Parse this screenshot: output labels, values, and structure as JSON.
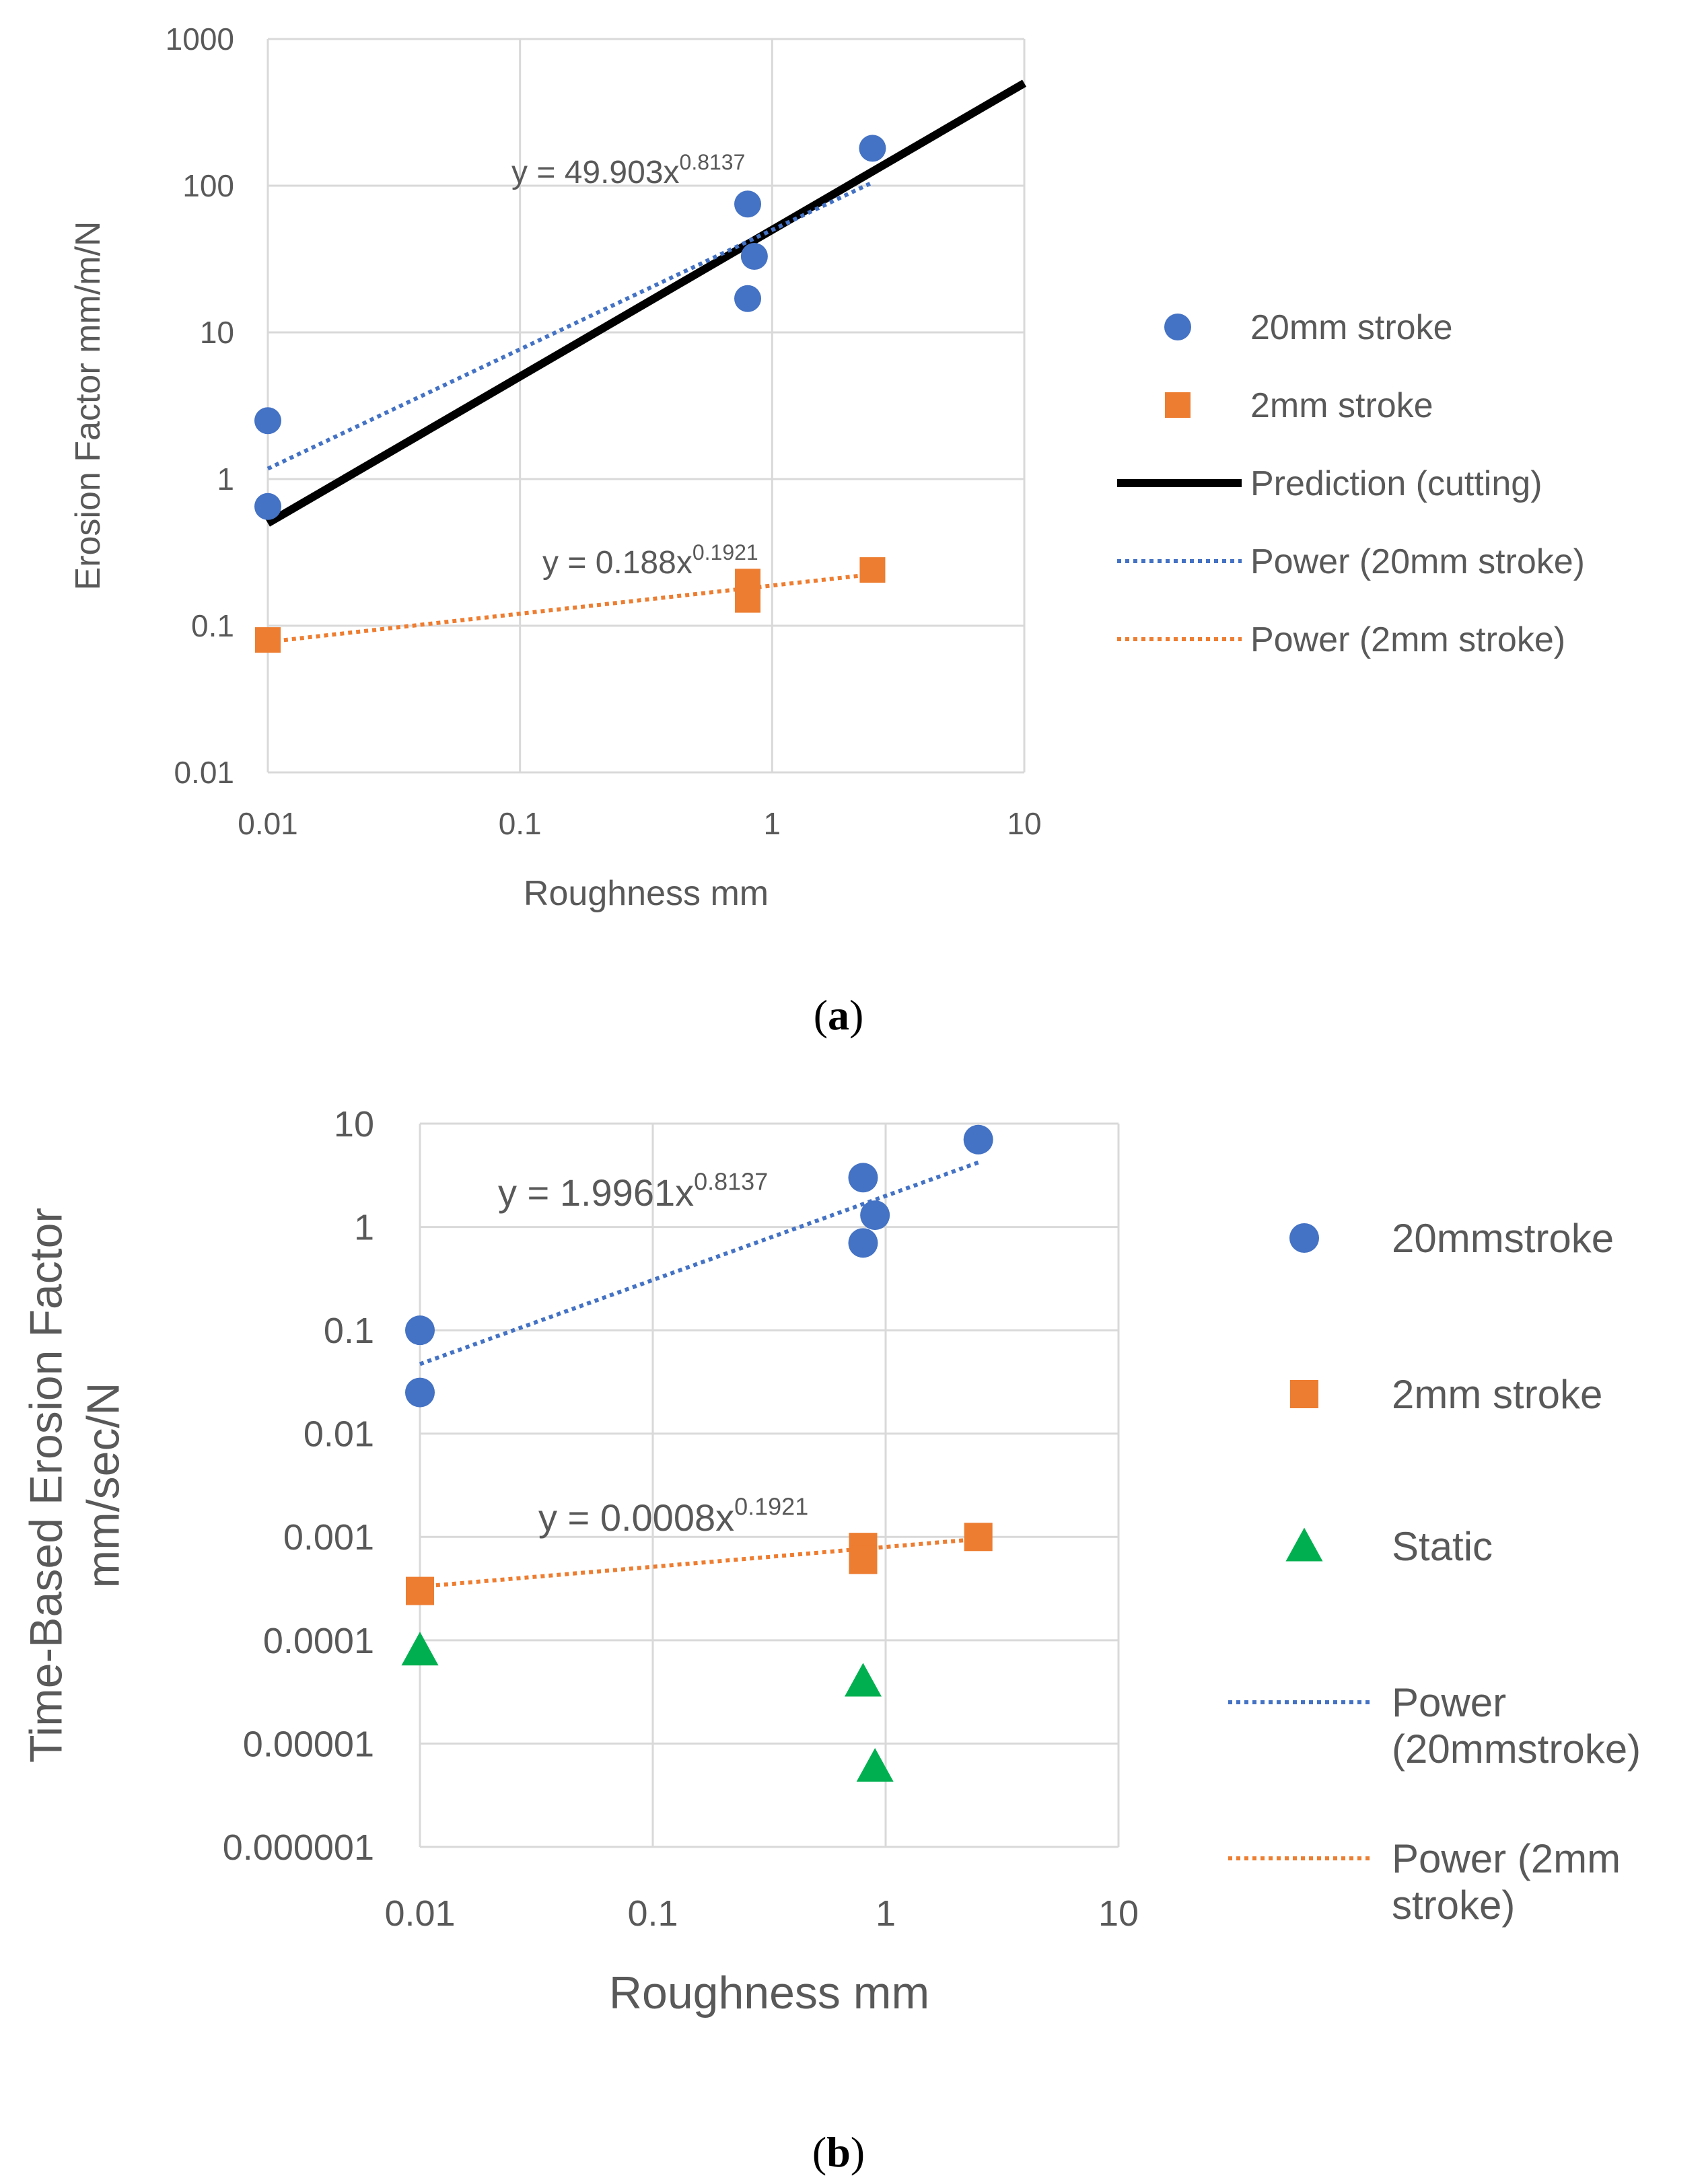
{
  "chart_data": [
    {
      "type": "scatter",
      "panel_label": "a",
      "xlabel": "Roughness mm",
      "ylabel": "Erosion Factor mm/m/N",
      "xscale": "log",
      "yscale": "log",
      "xlim": [
        0.01,
        10
      ],
      "ylim": [
        0.01,
        1000
      ],
      "x_ticks": [
        "0.01",
        "0.1",
        "1",
        "10"
      ],
      "y_ticks": [
        "0.01",
        "0.1",
        "1",
        "10",
        "100",
        "1000"
      ],
      "grid": true,
      "legend_position": "right",
      "series": [
        {
          "name": "20mm stroke",
          "kind": "points",
          "marker": "circle",
          "color": "#4472C4",
          "x": [
            0.01,
            0.01,
            0.8,
            0.8,
            0.85,
            2.5
          ],
          "y": [
            2.5,
            0.65,
            75,
            17,
            33,
            180
          ]
        },
        {
          "name": "2mm stroke",
          "kind": "points",
          "marker": "square",
          "color": "#ED7D31",
          "x": [
            0.01,
            0.8,
            0.8,
            2.5
          ],
          "y": [
            0.08,
            0.2,
            0.15,
            0.24
          ]
        },
        {
          "name": "Prediction (cutting)",
          "kind": "line",
          "style": "solid",
          "color": "#000000",
          "x": [
            0.01,
            10
          ],
          "y": [
            0.5,
            500
          ]
        },
        {
          "name": "Power (20mm stroke)",
          "kind": "trend",
          "style": "dotted",
          "color": "#4472C4",
          "coef": 49.903,
          "exp": 0.8137,
          "x_range": [
            0.01,
            2.5
          ]
        },
        {
          "name": "Power (2mm stroke)",
          "kind": "trend",
          "style": "dotted",
          "color": "#ED7D31",
          "coef": 0.188,
          "exp": 0.1921,
          "x_range": [
            0.01,
            2.5
          ]
        }
      ],
      "annotations": [
        {
          "base": "y = 49.903x",
          "sup": "0.8137",
          "near_x": 0.1,
          "near_y": 120
        },
        {
          "base": "y = 0.188x",
          "sup": "0.1921",
          "near_x": 0.2,
          "near_y": 0.45
        }
      ]
    },
    {
      "type": "scatter",
      "panel_label": "b",
      "xlabel": "Roughness mm",
      "ylabel": [
        "Time-Based Erosion Factor",
        "mm/sec/N"
      ],
      "xscale": "log",
      "yscale": "log",
      "xlim": [
        0.01,
        10
      ],
      "ylim": [
        1e-06,
        10
      ],
      "x_ticks": [
        "0.01",
        "0.1",
        "1",
        "10"
      ],
      "y_ticks": [
        "0.000001",
        "0.00001",
        "0.0001",
        "0.001",
        "0.01",
        "0.1",
        "1",
        "10"
      ],
      "grid": true,
      "legend_position": "right",
      "series": [
        {
          "name": "20mmstroke",
          "kind": "points",
          "marker": "circle",
          "color": "#4472C4",
          "x": [
            0.01,
            0.01,
            0.8,
            0.8,
            0.9,
            2.5
          ],
          "y": [
            0.1,
            0.025,
            3,
            0.7,
            1.3,
            7
          ]
        },
        {
          "name": "2mm stroke",
          "kind": "points",
          "marker": "square",
          "color": "#ED7D31",
          "x": [
            0.01,
            0.8,
            0.8,
            2.5
          ],
          "y": [
            0.0003,
            0.0008,
            0.0006,
            0.001
          ]
        },
        {
          "name": "Static",
          "kind": "points",
          "marker": "triangle",
          "color": "#00B050",
          "x": [
            0.01,
            0.8,
            0.9
          ],
          "y": [
            8e-05,
            4e-05,
            6e-06
          ]
        },
        {
          "name": [
            "Power",
            "(20mmstroke)"
          ],
          "kind": "trend",
          "style": "dotted",
          "color": "#4472C4",
          "coef": 1.9961,
          "exp": 0.8137,
          "x_range": [
            0.01,
            2.5
          ]
        },
        {
          "name": [
            "Power (2mm",
            "stroke)"
          ],
          "kind": "trend",
          "style": "dotted",
          "color": "#ED7D31",
          "coef": 0.0008,
          "exp": 0.1921,
          "x_range": [
            0.01,
            2.5
          ]
        }
      ],
      "annotations": [
        {
          "base": "y = 1.9961x",
          "sup": "0.8137",
          "near_x": 0.04,
          "near_y": 1.4
        },
        {
          "base": "y = 0.0008x",
          "sup": "0.1921",
          "near_x": 0.07,
          "near_y": 0.0016
        }
      ]
    }
  ]
}
